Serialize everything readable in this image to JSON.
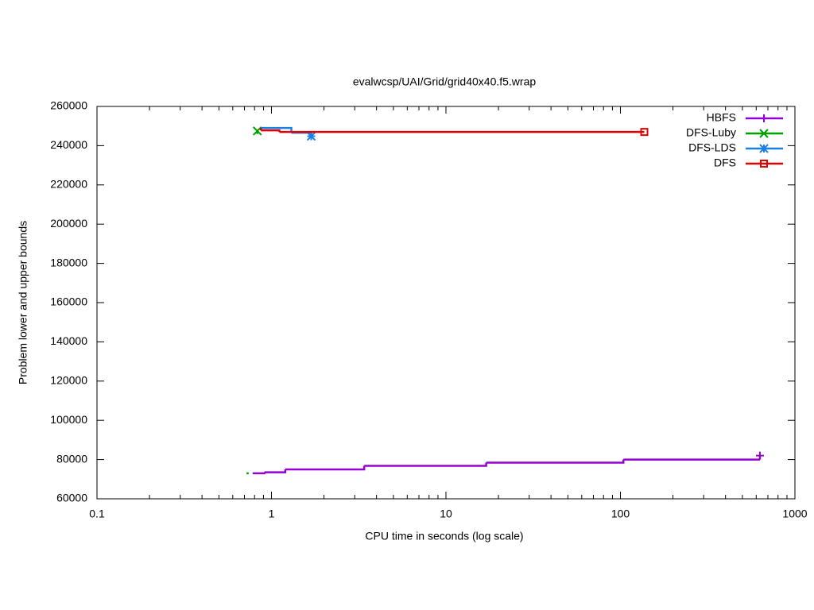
{
  "chart_data": {
    "type": "step",
    "title": "evalwcsp/UAI/Grid/grid40x40.f5.wrap",
    "x_label": "CPU time in seconds (log scale)",
    "y_label": "Problem lower and upper bounds",
    "xlim": [
      0.1,
      1000
    ],
    "xticks": [
      0.1,
      1,
      10,
      100,
      1000
    ],
    "xlog": true,
    "ylim": [
      60000,
      260000
    ],
    "yticks": [
      60000,
      80000,
      100000,
      120000,
      140000,
      160000,
      180000,
      200000,
      220000,
      240000,
      260000
    ],
    "legend": "top-right",
    "series": [
      {
        "name": "HBFS",
        "color": "#9400d3",
        "marker": "plus",
        "x": [
          0.78,
          0.91,
          1.2,
          3.4,
          17,
          104,
          630,
          630
        ],
        "values": [
          73000,
          73500,
          75000,
          76800,
          78400,
          80000,
          80000,
          82000
        ]
      },
      {
        "name": "DFS-Luby",
        "color": "#00a000",
        "marker": "cross",
        "x": [
          0.72,
          0.74,
          null,
          0.83,
          0.83
        ],
        "values": [
          73000,
          73000,
          null,
          246000,
          247500
        ]
      },
      {
        "name": "DFS-LDS",
        "color": "#1a80e6",
        "marker": "star",
        "x": [
          0.87,
          1.3,
          1.69,
          1.69
        ],
        "values": [
          249000,
          246600,
          246600,
          244800
        ]
      },
      {
        "name": "DFS",
        "color": "#e00000",
        "marker": "square",
        "x": [
          0.87,
          0.87,
          1.11,
          137
        ],
        "values": [
          249000,
          247800,
          247000,
          247000
        ]
      }
    ]
  }
}
